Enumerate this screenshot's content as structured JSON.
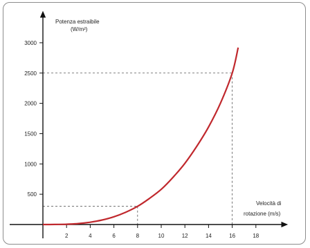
{
  "chart_data": {
    "type": "line",
    "ylabel": "Potenza estraibile",
    "ylabel_unit": "(W/m²)",
    "xlabel": "Velocità di",
    "xlabel_line2": "rotazione (m/s)",
    "x_ticks": [
      "2",
      "4",
      "6",
      "8",
      "10",
      "12",
      "14",
      "16",
      "18"
    ],
    "y_ticks": [
      "500",
      "1000",
      "1500",
      "2000",
      "2500",
      "3000"
    ],
    "xlim": [
      0,
      19
    ],
    "ylim": [
      0,
      3150
    ],
    "grid": false,
    "curve_color": "#c0282d",
    "guide_color": "#555555",
    "series": [
      {
        "x": [
          0,
          1,
          2,
          3,
          4,
          5,
          6,
          7,
          8,
          9,
          10,
          11,
          12,
          13,
          14,
          15,
          16,
          16.5
        ],
        "values": [
          0,
          1,
          5,
          16,
          38,
          74,
          128,
          203,
          300,
          430,
          580,
          780,
          1010,
          1290,
          1610,
          2000,
          2500,
          2920
        ]
      }
    ],
    "guides": [
      {
        "x": 8,
        "y": 300
      },
      {
        "x": 16,
        "y": 2500
      }
    ]
  }
}
